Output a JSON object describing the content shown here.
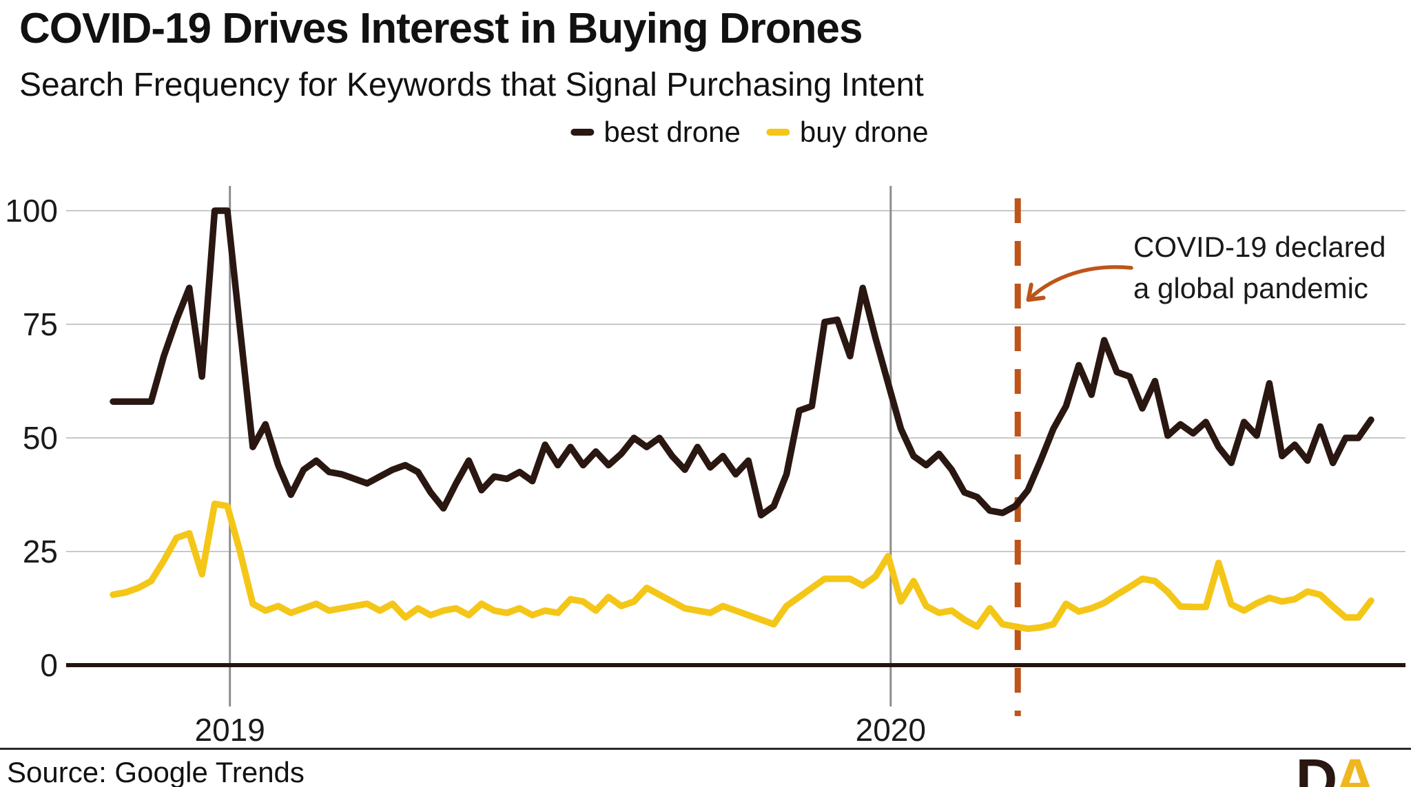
{
  "header": {
    "title": "COVID-19 Drives Interest in Buying Drones",
    "subtitle": "Search Frequency for Keywords that Signal Purchasing Intent"
  },
  "legend": {
    "items": [
      {
        "id": "best-drone",
        "label": "best drone",
        "color": "#2A1712"
      },
      {
        "id": "buy-drone",
        "label": "buy drone",
        "color": "#F4C618"
      }
    ]
  },
  "annotation": {
    "line1": "COVID-19 declared",
    "line2": "a global pandemic",
    "arrow_color": "#BD5519"
  },
  "footer": {
    "source": "Source: Google Trends",
    "logo_d": "D",
    "logo_a": "A"
  },
  "colors": {
    "best_drone": "#2A1712",
    "buy_drone": "#F4C618",
    "event_line": "#BD5519",
    "gridline": "#C8C8C8",
    "year_line": "#8C8C8C",
    "axis": "#241410",
    "text": "#1a1a1a"
  },
  "chart_data": {
    "type": "line",
    "title": "COVID-19 Drives Interest in Buying Drones",
    "subtitle": "Search Frequency for Keywords that Signal Purchasing Intent",
    "x_unit": "weeks",
    "xlabel": "",
    "ylabel": "",
    "ylim": [
      0,
      100
    ],
    "yticks": [
      0,
      25,
      50,
      75,
      100
    ],
    "grid": true,
    "legend_position": "top-center",
    "x_tick_labels": [
      "2019",
      "2020"
    ],
    "year_marks": [
      {
        "label": "2019",
        "week": 9.2
      },
      {
        "label": "2020",
        "week": 61.2
      }
    ],
    "event_line": {
      "week": 71.2,
      "style": "dashed",
      "label": "COVID-19 declared a global pandemic"
    },
    "series": [
      {
        "name": "best drone",
        "values": [
          58,
          58,
          58,
          58,
          68,
          76,
          83,
          63.5,
          100,
          100,
          74,
          48,
          53,
          44,
          37.5,
          43,
          45,
          42.5,
          42,
          41,
          40,
          41.5,
          43,
          44,
          42.5,
          38,
          34.5,
          40,
          45,
          38.5,
          41.5,
          41,
          42.5,
          40.5,
          48.5,
          44,
          48,
          44,
          47,
          44,
          46.5,
          50,
          48,
          50,
          46,
          43,
          48,
          43.5,
          46,
          42,
          45,
          33,
          35,
          42,
          56,
          57,
          75.5,
          76,
          68,
          83,
          72,
          62,
          52,
          46,
          44,
          46.5,
          43,
          38,
          37,
          34,
          33.5,
          35,
          38.5,
          45,
          52,
          57,
          66,
          59.5,
          71.5,
          64.5,
          63.5,
          56.5,
          62.5,
          50.5,
          53,
          51,
          53.5,
          48,
          44.5,
          53.5,
          50.5,
          62,
          46,
          48.5,
          45,
          52.5,
          44.5,
          50,
          50,
          54
        ]
      },
      {
        "name": "buy drone",
        "values": [
          15.5,
          16,
          17,
          18.5,
          23,
          28,
          29,
          20,
          35.5,
          35,
          25,
          13.5,
          12,
          13,
          11.5,
          12.5,
          13.5,
          12,
          12.5,
          13,
          13.5,
          12,
          13.5,
          10.5,
          12.5,
          11,
          12,
          12.5,
          11,
          13.5,
          12,
          11.5,
          12.5,
          11,
          12,
          11.5,
          14.5,
          14,
          12,
          15,
          13,
          14,
          17,
          15.5,
          14,
          12.5,
          12,
          11.5,
          13,
          12,
          11,
          10,
          9,
          13,
          15,
          17,
          19,
          19,
          19,
          17.5,
          19.5,
          24,
          14,
          18.5,
          13,
          11.5,
          12,
          10,
          8.5,
          12.5,
          9,
          8.5,
          8,
          8.3,
          9,
          13.5,
          11.8,
          12.5,
          13.7,
          15.5,
          17.2,
          19,
          18.5,
          16.1,
          12.9,
          12.8,
          12.8,
          22.5,
          13.4,
          12,
          13.6,
          14.8,
          14,
          14.5,
          16.2,
          15.5,
          12.9,
          10.5,
          10.5,
          14.2
        ]
      }
    ]
  }
}
